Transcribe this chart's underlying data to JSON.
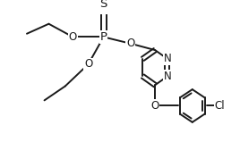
{
  "background_color": "#ffffff",
  "line_color": "#1a1a1a",
  "line_width": 1.4,
  "font_size": 8.5,
  "xlim": [
    0.0,
    1.0
  ],
  "ylim": [
    0.0,
    1.0
  ]
}
